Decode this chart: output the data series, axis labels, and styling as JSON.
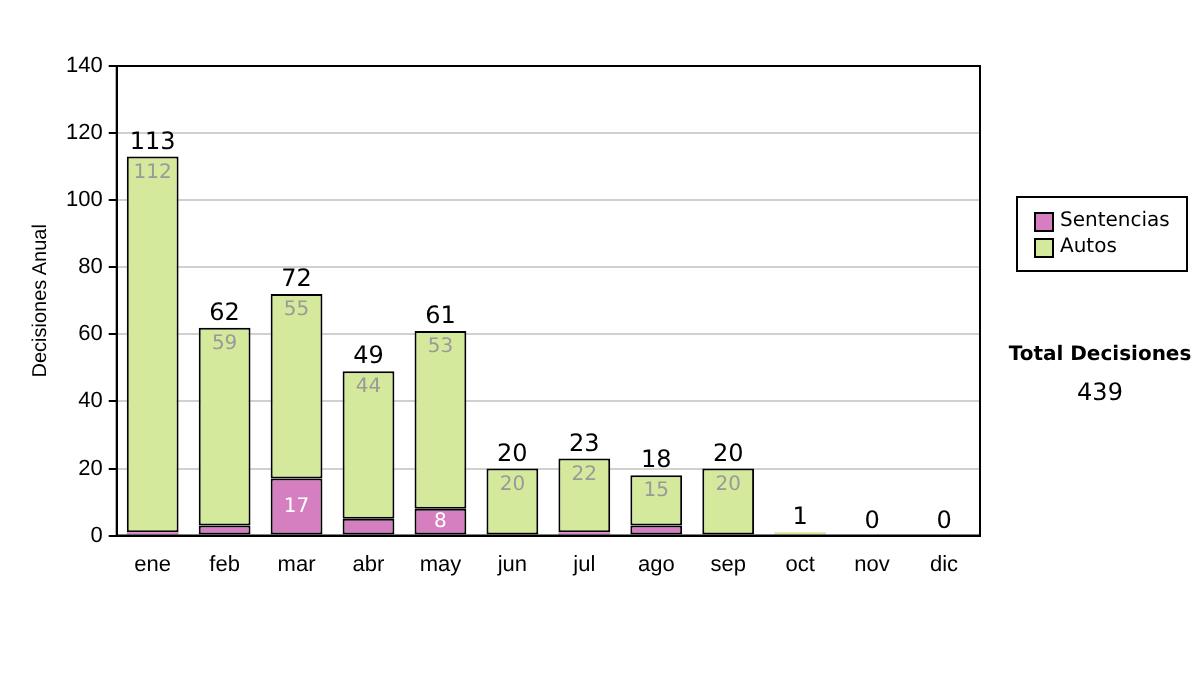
{
  "chart_data": {
    "type": "bar",
    "stacked": true,
    "categories": [
      "ene",
      "feb",
      "mar",
      "abr",
      "may",
      "jun",
      "jul",
      "ago",
      "sep",
      "oct",
      "nov",
      "dic"
    ],
    "series": [
      {
        "name": "Sentencias",
        "color": "#d67fc0",
        "values": [
          1,
          3,
          17,
          5,
          8,
          0,
          1,
          3,
          0,
          0,
          0,
          0
        ],
        "value_labels": [
          null,
          null,
          "17",
          null,
          "8",
          null,
          null,
          null,
          null,
          null,
          null,
          null
        ]
      },
      {
        "name": "Autos",
        "color": "#d5e99c",
        "values": [
          112,
          59,
          55,
          44,
          53,
          20,
          22,
          15,
          20,
          1,
          0,
          0
        ],
        "value_labels": [
          "112",
          "59",
          "55",
          "44",
          "53",
          "20",
          "22",
          "15",
          "20",
          null,
          null,
          null
        ]
      }
    ],
    "totals": [
      "113",
      "62",
      "72",
      "49",
      "61",
      "20",
      "23",
      "18",
      "20",
      "1",
      "0",
      "0"
    ],
    "ylabel": "Decisiones Anual",
    "ylim": [
      0,
      140
    ],
    "yticks": [
      0,
      20,
      40,
      60,
      80,
      100,
      120,
      140
    ],
    "grid": "y",
    "legend": "right",
    "annotations": [
      "Total Decisiones",
      "439"
    ]
  }
}
